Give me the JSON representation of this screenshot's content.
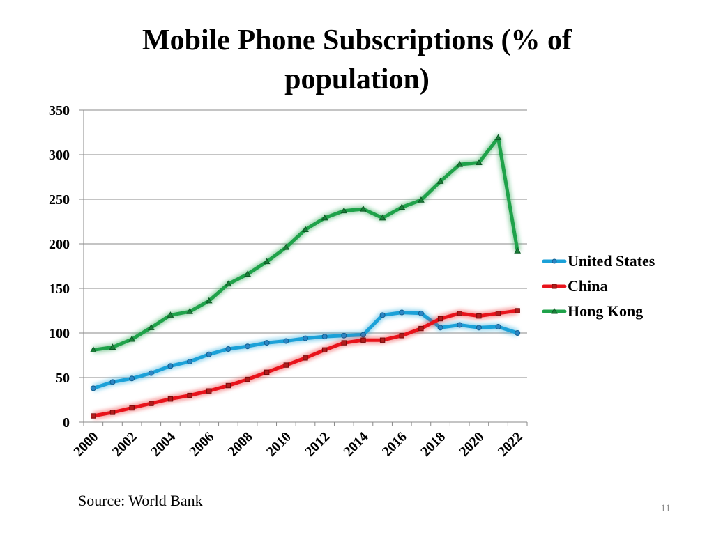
{
  "slide": {
    "title_line1": "Mobile Phone Subscriptions (% of",
    "title_line2": "population)",
    "source": "Source: World Bank",
    "page_number": "11"
  },
  "chart_data": {
    "type": "line",
    "title": "Mobile Phone Subscriptions (% of population)",
    "xlabel": "",
    "ylabel": "",
    "ylim": [
      0,
      350
    ],
    "yticks": [
      0,
      50,
      100,
      150,
      200,
      250,
      300,
      350
    ],
    "x": [
      2000,
      2001,
      2002,
      2003,
      2004,
      2005,
      2006,
      2007,
      2008,
      2009,
      2010,
      2011,
      2012,
      2013,
      2014,
      2015,
      2016,
      2017,
      2018,
      2019,
      2020,
      2021,
      2022
    ],
    "xtick_labels": [
      "2000",
      "2002",
      "2004",
      "2006",
      "2008",
      "2010",
      "2012",
      "2014",
      "2016",
      "2018",
      "2020",
      "2022"
    ],
    "grid": true,
    "legend_position": "right",
    "series": [
      {
        "name": "United States",
        "color": "#1ba1d8",
        "marker": "circle",
        "values": [
          38,
          45,
          49,
          55,
          63,
          68,
          76,
          82,
          85,
          89,
          91,
          94,
          96,
          97,
          98,
          120,
          123,
          122,
          106,
          109,
          106,
          107,
          100
        ]
      },
      {
        "name": "China",
        "color": "#e8131b",
        "marker": "square",
        "values": [
          7,
          11,
          16,
          21,
          26,
          30,
          35,
          41,
          48,
          56,
          64,
          72,
          81,
          89,
          92,
          92,
          97,
          105,
          116,
          122,
          119,
          122,
          125
        ]
      },
      {
        "name": "Hong Kong",
        "color": "#1fa24a",
        "marker": "triangle",
        "values": [
          81,
          84,
          93,
          106,
          120,
          124,
          136,
          155,
          166,
          180,
          196,
          216,
          229,
          237,
          239,
          229,
          241,
          249,
          270,
          289,
          291,
          319,
          192
        ]
      }
    ]
  }
}
